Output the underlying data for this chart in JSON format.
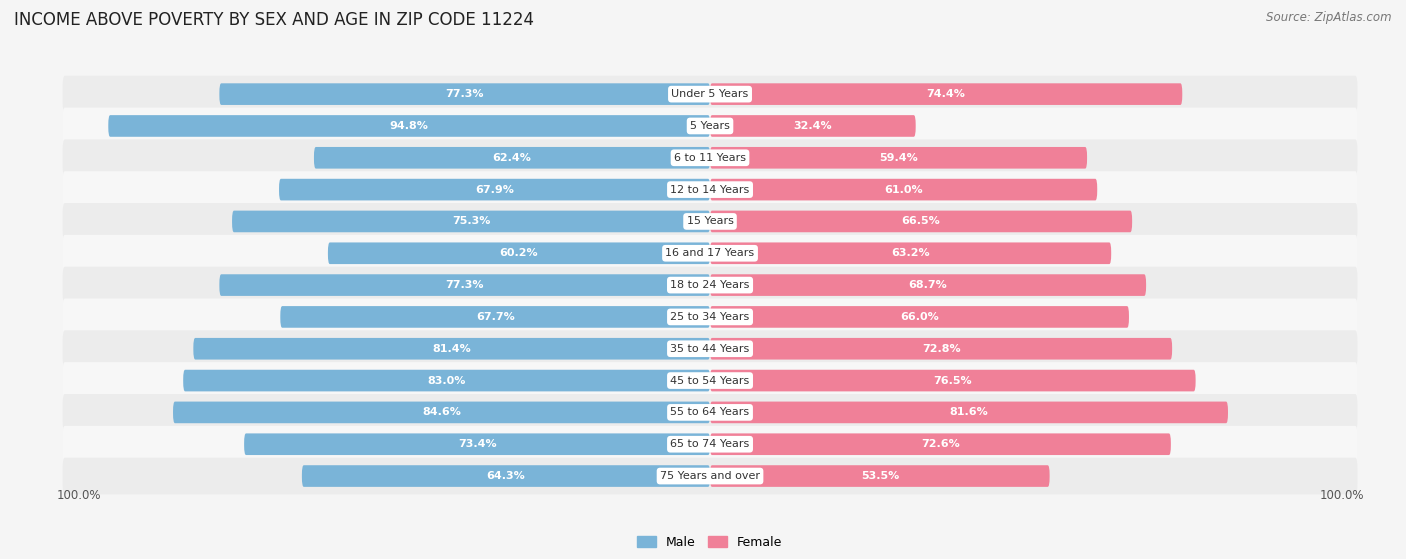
{
  "title": "INCOME ABOVE POVERTY BY SEX AND AGE IN ZIP CODE 11224",
  "source": "Source: ZipAtlas.com",
  "categories": [
    "Under 5 Years",
    "5 Years",
    "6 to 11 Years",
    "12 to 14 Years",
    "15 Years",
    "16 and 17 Years",
    "18 to 24 Years",
    "25 to 34 Years",
    "35 to 44 Years",
    "45 to 54 Years",
    "55 to 64 Years",
    "65 to 74 Years",
    "75 Years and over"
  ],
  "male_values": [
    77.3,
    94.8,
    62.4,
    67.9,
    75.3,
    60.2,
    77.3,
    67.7,
    81.4,
    83.0,
    84.6,
    73.4,
    64.3
  ],
  "female_values": [
    74.4,
    32.4,
    59.4,
    61.0,
    66.5,
    63.2,
    68.7,
    66.0,
    72.8,
    76.5,
    81.6,
    72.6,
    53.5
  ],
  "male_color": "#7ab4d8",
  "female_color": "#f08098",
  "row_color_even": "#ececec",
  "row_color_odd": "#f7f7f7",
  "background_color": "#f5f5f5",
  "title_fontsize": 12,
  "source_fontsize": 8.5,
  "label_fontsize": 8,
  "category_fontsize": 8,
  "legend_fontsize": 9,
  "max_value": 100.0,
  "axis_label": "100.0%"
}
